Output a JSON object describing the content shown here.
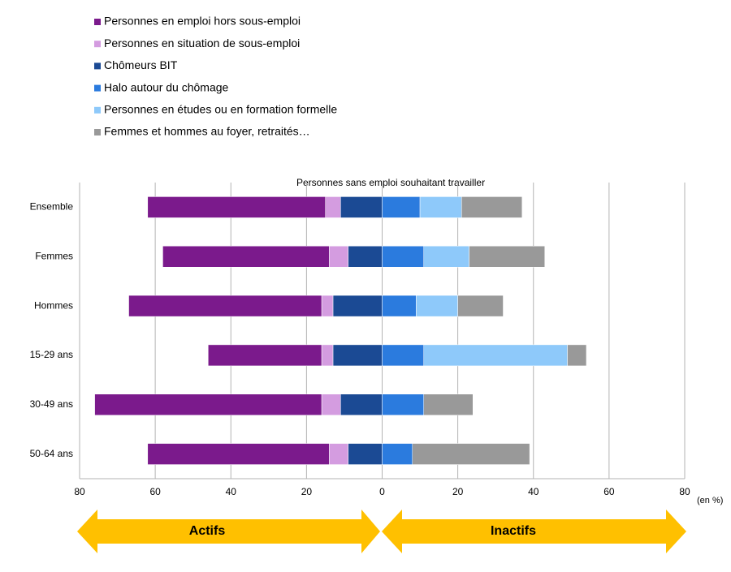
{
  "chart_data": {
    "type": "bar",
    "orientation": "horizontal",
    "stacked": true,
    "annotation": "Personnes sans emploi souhaitant travailler",
    "xlabel": "(en %)",
    "arrow_labels": [
      "Actifs",
      "Inactifs"
    ],
    "categories": [
      "Ensemble",
      "Femmes",
      "Hommes",
      "15-29 ans",
      "30-49 ans",
      "50-64 ans"
    ],
    "series": [
      {
        "name": "Personnes en emploi hors sous-emploi",
        "color": "#7b1a8c",
        "values": [
          -47,
          -44,
          -51,
          -30,
          -60,
          -48
        ]
      },
      {
        "name": "Personnes en situation de sous-emploi",
        "color": "#d49ce0",
        "values": [
          -4,
          -5,
          -3,
          -3,
          -5,
          -5
        ]
      },
      {
        "name": "Chômeurs BIT",
        "color": "#1b4a94",
        "values": [
          -11,
          -9,
          -13,
          -13,
          -11,
          -9
        ]
      },
      {
        "name": "Halo autour du chômage",
        "color": "#2b7bde",
        "values": [
          10,
          11,
          9,
          11,
          11,
          8
        ]
      },
      {
        "name": "Personnes en études ou en formation formelle",
        "color": "#8ec9fa",
        "values": [
          11,
          12,
          11,
          38,
          0,
          0
        ]
      },
      {
        "name": "Femmes et hommes au foyer, retraités…",
        "color": "#999999",
        "values": [
          16,
          20,
          12,
          5,
          13,
          31
        ]
      }
    ],
    "xlim": [
      -80,
      80
    ],
    "xticks": [
      {
        "value": -80,
        "label": "80"
      },
      {
        "value": -60,
        "label": "60"
      },
      {
        "value": -40,
        "label": "40"
      },
      {
        "value": -20,
        "label": "20"
      },
      0,
      20,
      40,
      60,
      80
    ],
    "grid": true
  }
}
